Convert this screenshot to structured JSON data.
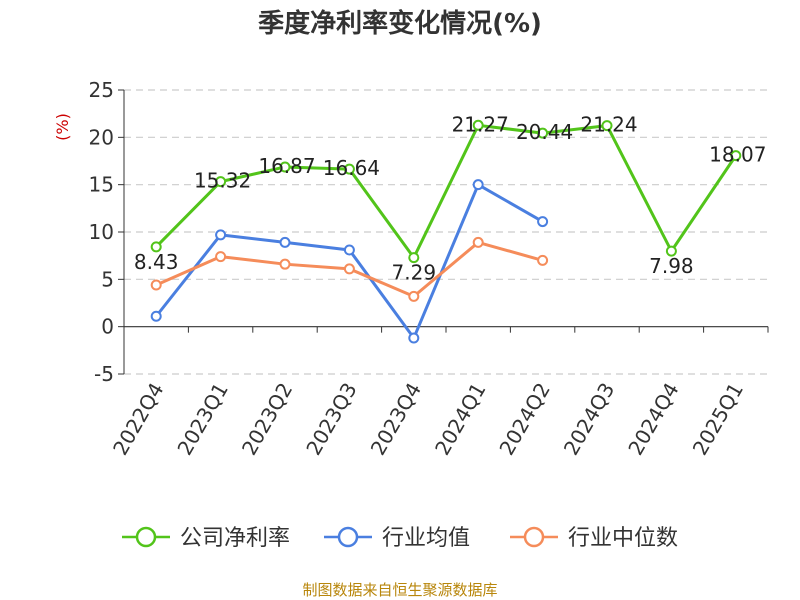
{
  "chart_data": {
    "type": "line",
    "title": "季度净利率变化情况(%)",
    "ylabel": "(%)",
    "categories": [
      "2022Q4",
      "2023Q1",
      "2023Q2",
      "2023Q3",
      "2023Q4",
      "2024Q1",
      "2024Q2",
      "2024Q3",
      "2024Q4",
      "2025Q1"
    ],
    "ylim": [
      -5,
      25
    ],
    "yticks": [
      -5,
      0,
      5,
      10,
      15,
      20,
      25
    ],
    "grid": true,
    "legend_position": "bottom",
    "series": [
      {
        "name": "公司净利率",
        "color": "#52c41a",
        "show_labels": true,
        "labels": [
          "8.43",
          "15.32",
          "16.87",
          "16.64",
          "7.29",
          "21.27",
          "20.44",
          "21.24",
          "7.98",
          "18.07"
        ],
        "values": [
          8.43,
          15.32,
          16.87,
          16.64,
          7.29,
          21.27,
          20.44,
          21.24,
          7.98,
          18.07
        ]
      },
      {
        "name": "行业均值",
        "color": "#4a7fe0",
        "show_labels": false,
        "values": [
          1.1,
          9.7,
          8.9,
          8.1,
          -1.2,
          15.0,
          11.1,
          null,
          null,
          null
        ]
      },
      {
        "name": "行业中位数",
        "color": "#f58c5a",
        "show_labels": false,
        "values": [
          4.4,
          7.4,
          6.6,
          6.1,
          3.2,
          8.9,
          7.0,
          null,
          null,
          null
        ]
      }
    ]
  },
  "source": "制图数据来自恒生聚源数据库"
}
